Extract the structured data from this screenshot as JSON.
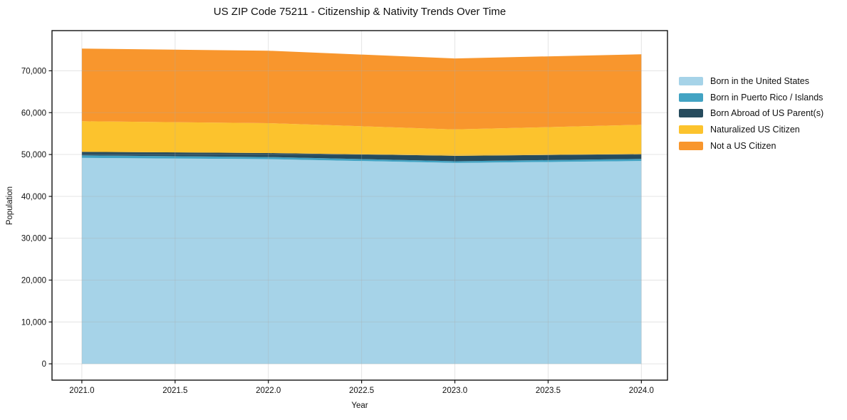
{
  "page": {
    "background": "#ffffff"
  },
  "chart_data": {
    "type": "area",
    "stacked": true,
    "title": "US ZIP Code 75211 - Citizenship & Nativity Trends Over Time",
    "xlabel": "Year",
    "ylabel": "Population",
    "x": [
      2021,
      2022,
      2023,
      2024
    ],
    "series": [
      {
        "name": "Born in the United States",
        "color": "#a6d3e8",
        "values": [
          49200,
          48900,
          48000,
          48450
        ]
      },
      {
        "name": "Born in Puerto Rico / Islands",
        "color": "#42a3c3",
        "values": [
          600,
          500,
          400,
          500
        ]
      },
      {
        "name": "Born Abroad of US Parent(s)",
        "color": "#264b5d",
        "values": [
          850,
          950,
          1300,
          1150
        ]
      },
      {
        "name": "Naturalized US Citizen",
        "color": "#fcc32d",
        "values": [
          7300,
          7150,
          6300,
          7000
        ]
      },
      {
        "name": "Not a US Citizen",
        "color": "#f8962d",
        "values": [
          17350,
          17300,
          16950,
          16850
        ]
      }
    ],
    "stacked_totals": [
      75300,
      74800,
      72950,
      73950
    ],
    "xticks": {
      "values": [
        2021.0,
        2021.5,
        2022.0,
        2022.5,
        2023.0,
        2023.5,
        2024.0
      ],
      "labels": [
        "2021.0",
        "2021.5",
        "2022.0",
        "2022.5",
        "2023.0",
        "2023.5",
        "2024.0"
      ]
    },
    "yticks": {
      "values": [
        0,
        10000,
        20000,
        30000,
        40000,
        50000,
        60000,
        70000
      ],
      "labels": [
        "0",
        "10,000",
        "20,000",
        "30,000",
        "40,000",
        "50,000",
        "60,000",
        "70,000"
      ]
    },
    "xlim": [
      2020.84,
      2024.14
    ],
    "ylim": [
      -3900,
      79600
    ],
    "grid": true,
    "legend_position": "right"
  }
}
